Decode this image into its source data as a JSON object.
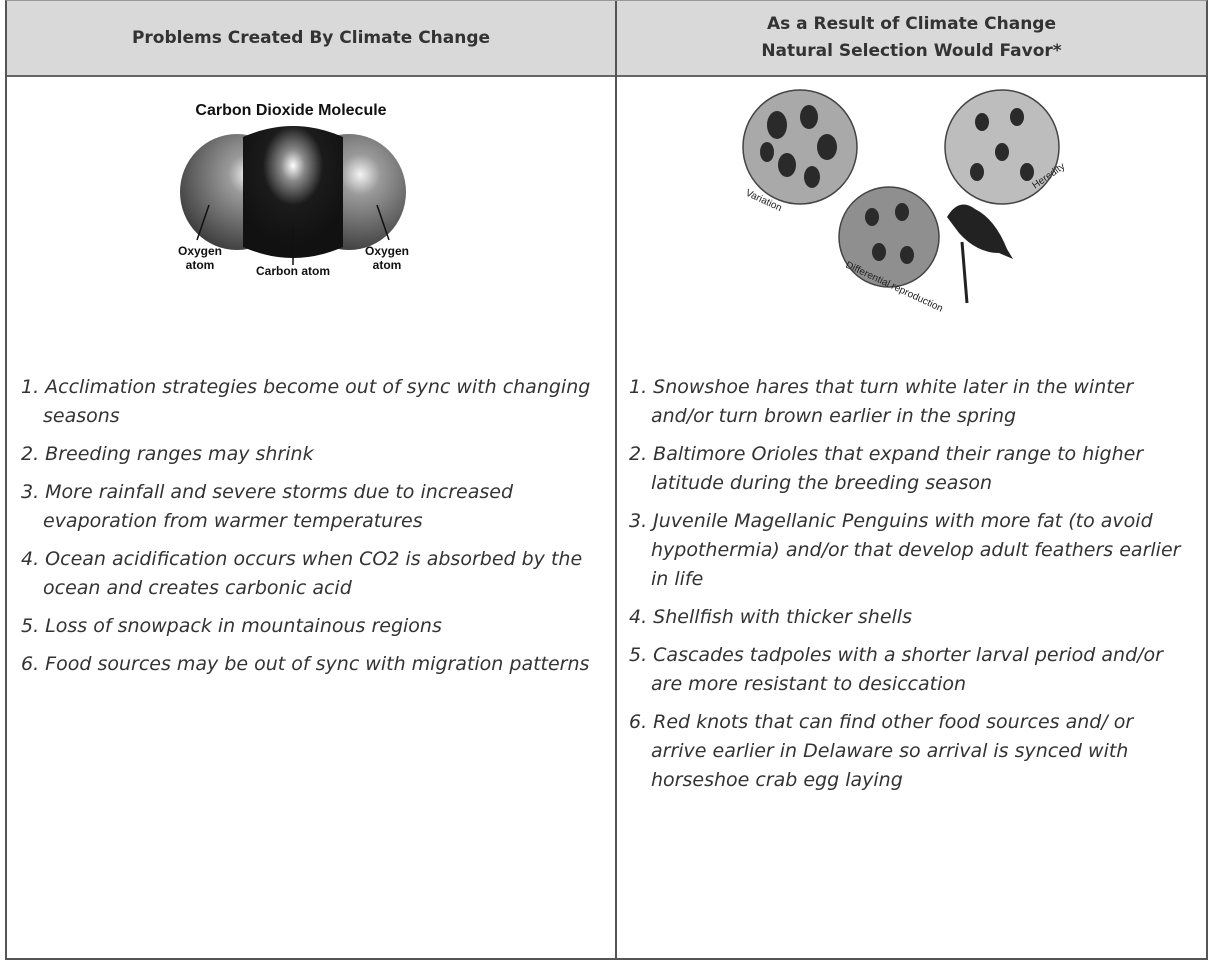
{
  "table": {
    "columns": [
      {
        "header": [
          "Problems Created By Climate Change"
        ],
        "figure": {
          "title": "Carbon Dioxide Molecule",
          "labels": [
            "Oxygen",
            "atom",
            "Carbon atom",
            "Oxygen",
            "atom"
          ]
        },
        "items": [
          "1. Acclimation strategies become out of sync with changing seasons",
          "2. Breeding ranges may shrink",
          "3. More rainfall and severe storms due to increased evaporation from warmer temperatures",
          "4. Ocean acidification occurs when CO2 is absorbed by the ocean and creates carbonic acid",
          "5. Loss of snowpack in mountainous regions",
          "6. Food sources may be out of sync with migration patterns"
        ]
      },
      {
        "header": [
          "As a Result of Climate Change",
          "Natural Selection Would Favor*"
        ],
        "figure": {
          "labels": [
            "Variation",
            "Heredity",
            "Differential reproduction"
          ]
        },
        "items": [
          "1. Snowshoe hares that turn white later in the winter and/or turn brown earlier in the spring",
          "2. Baltimore Orioles that expand their range to higher latitude during the breeding season",
          "3. Juvenile Magellanic Penguins with more fat (to avoid hypothermia) and/or that develop adult feathers earlier in life",
          "4. Shellfish with thicker shells",
          "5. Cascades tadpoles with a shorter larval period and/or are more resistant to desiccation",
          "6. Red knots that can find other food sources and/ or arrive earlier in Delaware so arrival is synced with horseshoe crab egg laying"
        ]
      }
    ]
  }
}
